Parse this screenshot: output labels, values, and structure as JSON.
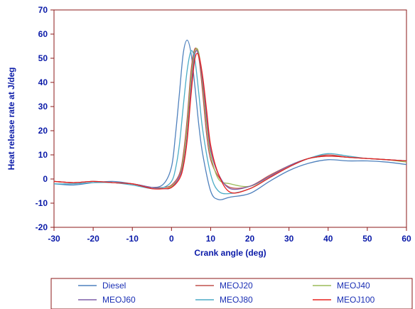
{
  "chart_data": {
    "type": "line",
    "xlabel": "Crank angle (deg)",
    "ylabel": "Heat release rate at J/deg",
    "xlim": [
      -30,
      60
    ],
    "ylim": [
      -20,
      70
    ],
    "xticks": [
      -30,
      -20,
      -10,
      0,
      10,
      20,
      30,
      40,
      50,
      60
    ],
    "yticks": [
      -20,
      -10,
      0,
      10,
      20,
      30,
      40,
      50,
      60,
      70
    ],
    "grid": false,
    "legend_position": "bottom",
    "colors": {
      "axis": "#8b1a1a",
      "tick_text": "#0a1aa8",
      "legend_text": "#1a2fb4"
    },
    "series": [
      {
        "name": "Diesel",
        "color": "#4f81bd",
        "x": [
          -30,
          -25,
          -20,
          -15,
          -10,
          -5,
          -2,
          0,
          1,
          2,
          3,
          4,
          5,
          6,
          7,
          8,
          10,
          12,
          15,
          20,
          25,
          30,
          35,
          40,
          45,
          50,
          55,
          60
        ],
        "y": [
          -2,
          -2.5,
          -1.5,
          -1,
          -2,
          -3.5,
          -2,
          5,
          18,
          35,
          52,
          57.5,
          52,
          38,
          22,
          10,
          -5,
          -8.5,
          -7.5,
          -6,
          -1,
          3.5,
          6.5,
          8,
          7.5,
          7.5,
          7,
          6
        ]
      },
      {
        "name": "MEOJ20",
        "color": "#c0504d",
        "x": [
          -30,
          -25,
          -20,
          -15,
          -10,
          -5,
          -2,
          0,
          2,
          3,
          4,
          5,
          6,
          7,
          8,
          9,
          10,
          12,
          15,
          20,
          25,
          30,
          35,
          40,
          45,
          50,
          55,
          60
        ],
        "y": [
          -1,
          -1.5,
          -1,
          -1.5,
          -2,
          -3.5,
          -3.5,
          -2.5,
          2,
          10,
          25,
          45,
          54,
          50,
          35,
          18,
          8,
          1,
          -3.5,
          -3,
          1.5,
          5.5,
          8.5,
          10,
          9,
          8.5,
          8,
          7.5
        ]
      },
      {
        "name": "MEOJ40",
        "color": "#9bbb59",
        "x": [
          -30,
          -25,
          -20,
          -15,
          -10,
          -5,
          -2,
          0,
          2,
          3,
          4,
          5,
          6,
          7,
          8,
          9,
          10,
          12,
          15,
          20,
          25,
          30,
          35,
          40,
          45,
          50,
          55,
          60
        ],
        "y": [
          -1,
          -1.5,
          -1,
          -1.5,
          -2,
          -3.5,
          -4,
          -3,
          1,
          8,
          22,
          42,
          53,
          52,
          38,
          22,
          10,
          0,
          -2,
          -3,
          1,
          5.5,
          8.5,
          9.5,
          9,
          8.5,
          8,
          7
        ]
      },
      {
        "name": "MEOJ60",
        "color": "#7e5ea8",
        "x": [
          -30,
          -25,
          -20,
          -15,
          -10,
          -5,
          -2,
          0,
          2,
          3,
          4,
          5,
          6,
          7,
          8,
          9,
          10,
          12,
          15,
          20,
          25,
          30,
          35,
          40,
          45,
          50,
          55,
          60
        ],
        "y": [
          -1,
          -1.5,
          -1,
          -1.5,
          -2,
          -3.5,
          -4,
          -3.5,
          1,
          6,
          18,
          38,
          52,
          51,
          40,
          25,
          12,
          2,
          -4,
          -3,
          1,
          5.5,
          8.5,
          9.5,
          9,
          8.5,
          8,
          7.5
        ]
      },
      {
        "name": "MEOJ80",
        "color": "#4bacc6",
        "x": [
          -30,
          -25,
          -20,
          -15,
          -10,
          -5,
          -2,
          0,
          1,
          2,
          3,
          4,
          5,
          6,
          7,
          8,
          10,
          12,
          15,
          20,
          25,
          30,
          35,
          40,
          45,
          50,
          55,
          60
        ],
        "y": [
          -2,
          -2,
          -1.5,
          -1.5,
          -2.5,
          -4,
          -3.5,
          -1,
          4,
          14,
          30,
          45,
          53,
          49,
          35,
          20,
          2,
          -5,
          -6,
          -4,
          0.5,
          5,
          8.5,
          10.5,
          9.5,
          8.5,
          8,
          7.5
        ]
      },
      {
        "name": "MEOJ100",
        "color": "#e8221e",
        "x": [
          -30,
          -25,
          -20,
          -15,
          -10,
          -5,
          -2,
          0,
          2,
          3,
          4,
          5,
          6,
          7,
          8,
          9,
          10,
          12,
          15,
          20,
          25,
          30,
          35,
          40,
          45,
          50,
          55,
          60
        ],
        "y": [
          -1,
          -1.5,
          -1,
          -1.5,
          -2,
          -4,
          -4,
          -3.5,
          0,
          5,
          16,
          35,
          50,
          51,
          42,
          28,
          14,
          2,
          -5.5,
          -4,
          0.5,
          5,
          8.5,
          9.5,
          9,
          8.5,
          8,
          7.5
        ]
      }
    ]
  }
}
